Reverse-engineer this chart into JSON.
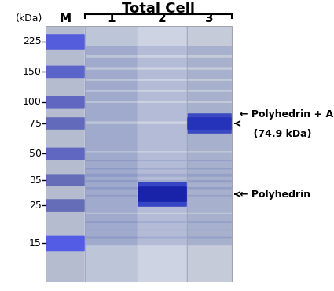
{
  "title": "Total Cell",
  "lane_labels": [
    "M",
    "1",
    "2",
    "3"
  ],
  "kda_label": "(kDa)",
  "mw_markers": [
    225,
    150,
    100,
    75,
    50,
    35,
    25,
    15
  ],
  "annotation_right1_line1": "← Polyhedrin + ADV gD",
  "annotation_right1_line2": "    (74.9 kDa)",
  "annotation_right2": "← Polyhedrin",
  "figure_bg": "#ffffff",
  "gel_bg": "#c2c8d6",
  "lane_bg_M": "#b5bcd0",
  "lane_bg_1": "#bdc5d8",
  "lane_bg_2": "#cdd3e2",
  "lane_bg_3": "#c5cbd8",
  "band_color_dark": "#2030c0",
  "band_color_mid": "#4050cc",
  "band_color_faint": "#7080bb",
  "title_fontsize": 13,
  "label_fontsize": 11,
  "tick_fontsize": 9,
  "annot_fontsize": 9
}
